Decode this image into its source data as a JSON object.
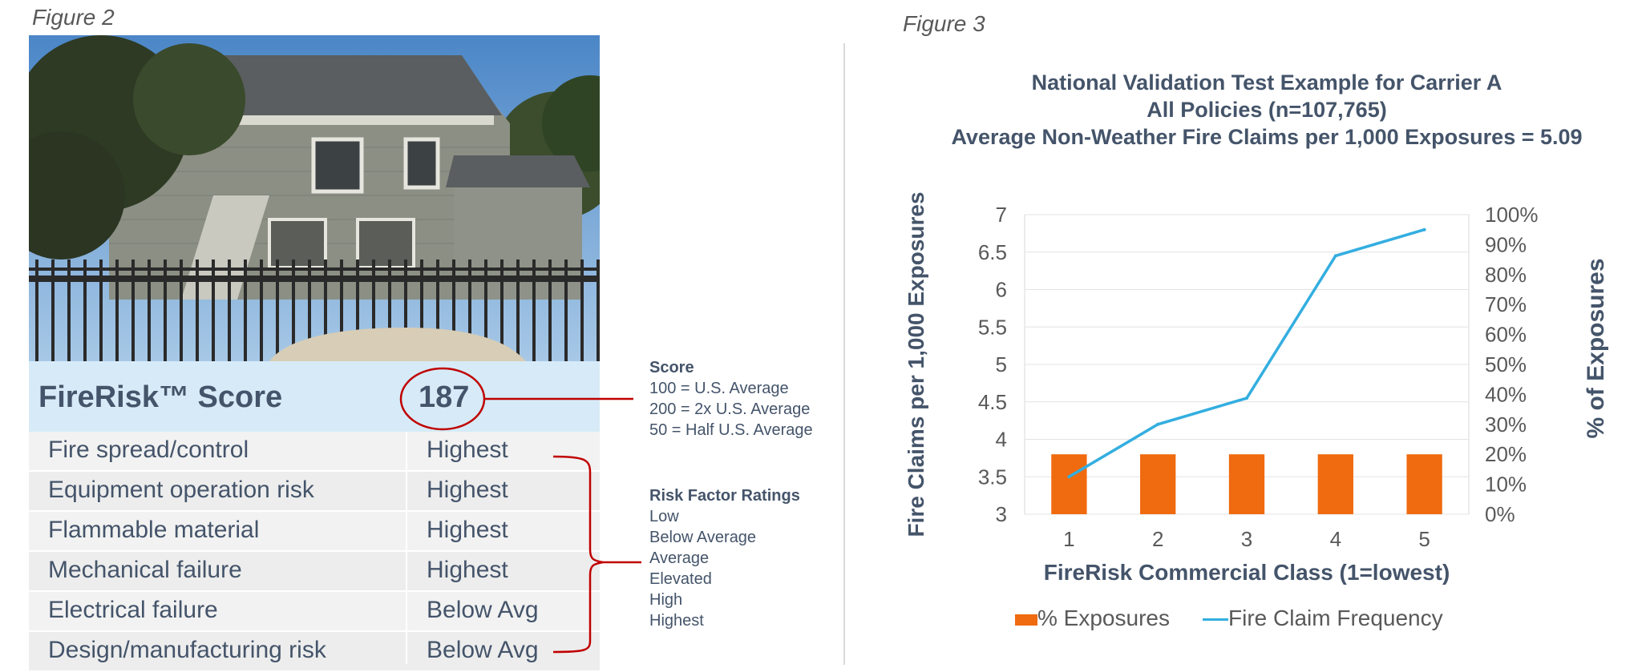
{
  "figure2": {
    "label": "Figure 2",
    "score_title": "FireRisk™ Score",
    "score_value": "187",
    "factors": [
      {
        "name": "Fire spread/control",
        "rating": "Highest"
      },
      {
        "name": "Equipment operation risk",
        "rating": "Highest"
      },
      {
        "name": "Flammable material",
        "rating": "Highest"
      },
      {
        "name": "Mechanical failure",
        "rating": "Highest"
      },
      {
        "name": "Electrical failure",
        "rating": "Below Avg"
      },
      {
        "name": "Design/manufacturing risk",
        "rating": "Below Avg"
      }
    ],
    "score_notes": {
      "heading": "Score",
      "lines": [
        "100 = U.S. Average",
        "200 = 2x U.S. Average",
        "50 = Half U.S. Average"
      ]
    },
    "risk_notes": {
      "heading": "Risk Factor Ratings",
      "lines": [
        "Low",
        "Below Average",
        "Average",
        "Elevated",
        "High",
        "Highest"
      ]
    },
    "accent_color": "#c00000"
  },
  "figure3": {
    "label": "Figure 3"
  },
  "chart_data": {
    "type": "bar",
    "title": "National Validation Test Example for Carrier A",
    "subtitle_lines": [
      "All Policies (n=107,765)",
      "Average Non-Weather Fire Claims per 1,000 Exposures = 5.09"
    ],
    "xlabel": "FireRisk Commercial Class (1=lowest)",
    "ylabel": "Fire Claims per 1,000 Exposures",
    "y2label": "% of Exposures",
    "categories": [
      "1",
      "2",
      "3",
      "4",
      "5"
    ],
    "ylim": [
      3,
      7
    ],
    "yticks": [
      "3",
      "3.5",
      "4",
      "4.5",
      "5",
      "5.5",
      "6",
      "6.5",
      "7"
    ],
    "y2lim": [
      0,
      100
    ],
    "y2ticks": [
      "0%",
      "10%",
      "20%",
      "30%",
      "40%",
      "50%",
      "60%",
      "70%",
      "80%",
      "90%",
      "100%"
    ],
    "grid": true,
    "legend_position": "bottom",
    "series": [
      {
        "name": "% Exposures",
        "type": "bar",
        "axis": "y2",
        "values": [
          20,
          20,
          20,
          20,
          20
        ],
        "color": "#f06a0f"
      },
      {
        "name": "Fire Claim Frequency",
        "type": "line",
        "axis": "y",
        "values": [
          3.5,
          4.2,
          4.55,
          6.45,
          6.8
        ],
        "color": "#33aee0"
      }
    ]
  }
}
